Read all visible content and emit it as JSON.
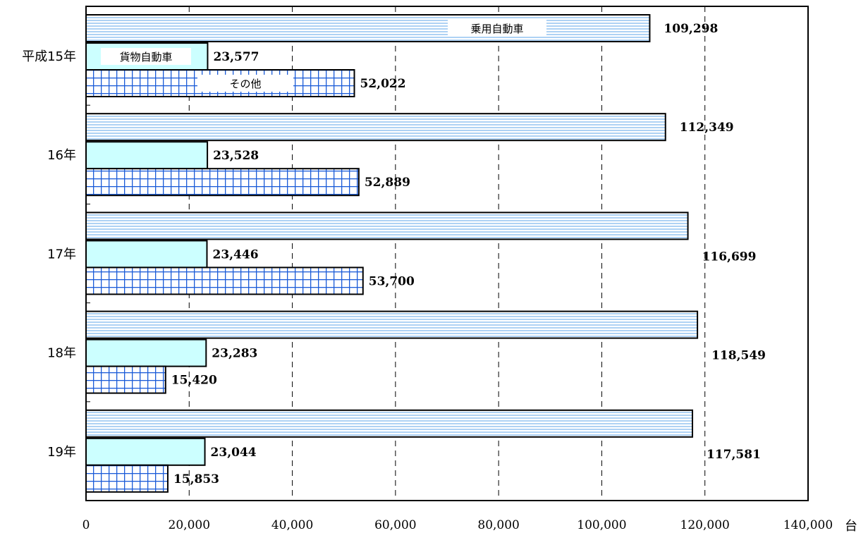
{
  "chart_data": {
    "type": "bar",
    "orientation": "horizontal",
    "categories": [
      "平成15年",
      "16年",
      "17年",
      "18年",
      "19年"
    ],
    "series": [
      {
        "name": "乗用自動車",
        "values": [
          109298,
          112349,
          116699,
          118549,
          117581
        ],
        "value_labels": [
          "109,298",
          "112,349",
          "116,699",
          "118,549",
          "117,581"
        ]
      },
      {
        "name": "貨物自動車",
        "values": [
          23577,
          23528,
          23446,
          23283,
          23044
        ],
        "value_labels": [
          "23,577",
          "23,528",
          "23,446",
          "23,283",
          "23,044"
        ]
      },
      {
        "name": "その他",
        "values": [
          52022,
          52889,
          53700,
          15420,
          15853
        ],
        "value_labels": [
          "52,022",
          "52,889",
          "53,700",
          "15,420",
          "15,853"
        ]
      }
    ],
    "xlim": [
      0,
      140000
    ],
    "xticks": [
      0,
      20000,
      40000,
      60000,
      80000,
      100000,
      120000,
      140000
    ],
    "xtick_labels": [
      "0",
      "20,000",
      "40,000",
      "60,000",
      "80,000",
      "100,000",
      "120,000",
      "140,000"
    ],
    "unit": "台",
    "grid": "vertical dashed",
    "legend": "inside bars of first category",
    "colors": {
      "series0": "#aed2f4",
      "series1": "#ccffff",
      "series2": "#1a5bd8",
      "axis": "#000000"
    }
  }
}
